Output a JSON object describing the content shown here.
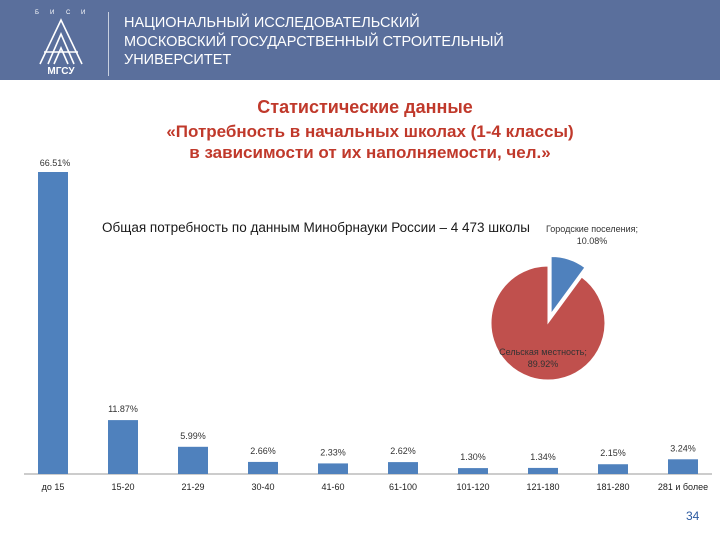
{
  "header": {
    "university_lines": [
      "НАЦИОНАЛЬНЫЙ ИССЛЕДОВАТЕЛЬСКИЙ",
      "МОСКОВСКИЙ ГОСУДАРСТВЕННЫЙ СТРОИТЕЛЬНЫЙ",
      "УНИВЕРСИТЕТ"
    ],
    "logo_text": "МГСУ",
    "logo_letters": [
      "Б",
      "И",
      "С",
      "И"
    ]
  },
  "title": "Статистические данные",
  "subtitle_lines": [
    "«Потребность в начальных школах (1-4 классы)",
    "в зависимости от их наполняемости, чел.»"
  ],
  "note": "Общая потребность по данным Минобрнауки России – 4 473 школы",
  "page_number": "34",
  "colors": {
    "header_bg": "#5a6f9c",
    "bar": "#4f81bd",
    "pie_urban": "#4f81bd",
    "pie_rural": "#c0504d",
    "title": "#c0392b"
  },
  "chart_data": [
    {
      "type": "bar",
      "categories": [
        "до 15",
        "15-20",
        "21-29",
        "30-40",
        "41-60",
        "61-100",
        "101-120",
        "121-180",
        "181-280",
        "281 и более"
      ],
      "values": [
        66.51,
        11.87,
        5.99,
        2.66,
        2.33,
        2.62,
        1.3,
        1.34,
        2.15,
        3.24
      ],
      "labels": [
        "66.51%",
        "11.87%",
        "5.99%",
        "2.66%",
        "2.33%",
        "2.62%",
        "1.30%",
        "1.34%",
        "2.15%",
        "3.24%"
      ],
      "unit": "%",
      "ylim": [
        0,
        66.51
      ],
      "grid": false
    },
    {
      "type": "pie",
      "slices": [
        {
          "name": "Городские поселения",
          "value": 10.08,
          "label": "10.08%"
        },
        {
          "name": "Сельская местность",
          "value": 89.92,
          "label": "89.92%"
        }
      ]
    }
  ]
}
